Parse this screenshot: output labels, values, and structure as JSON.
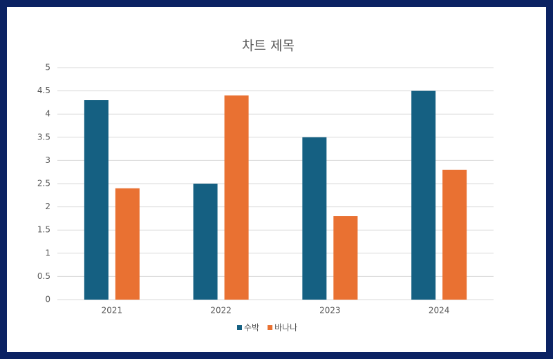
{
  "chart_data": {
    "type": "bar",
    "title": "차트 제목",
    "categories": [
      "2021",
      "2022",
      "2023",
      "2024"
    ],
    "series": [
      {
        "name": "수박",
        "color": "#156082",
        "values": [
          4.3,
          2.5,
          3.5,
          4.5
        ]
      },
      {
        "name": "바나나",
        "color": "#e97132",
        "values": [
          2.4,
          4.4,
          1.8,
          2.8
        ]
      }
    ],
    "ylim": [
      0,
      5
    ],
    "yticks": [
      0,
      0.5,
      1,
      1.5,
      2,
      2.5,
      3,
      3.5,
      4,
      4.5,
      5
    ],
    "grid": true,
    "legend": "bottom"
  }
}
